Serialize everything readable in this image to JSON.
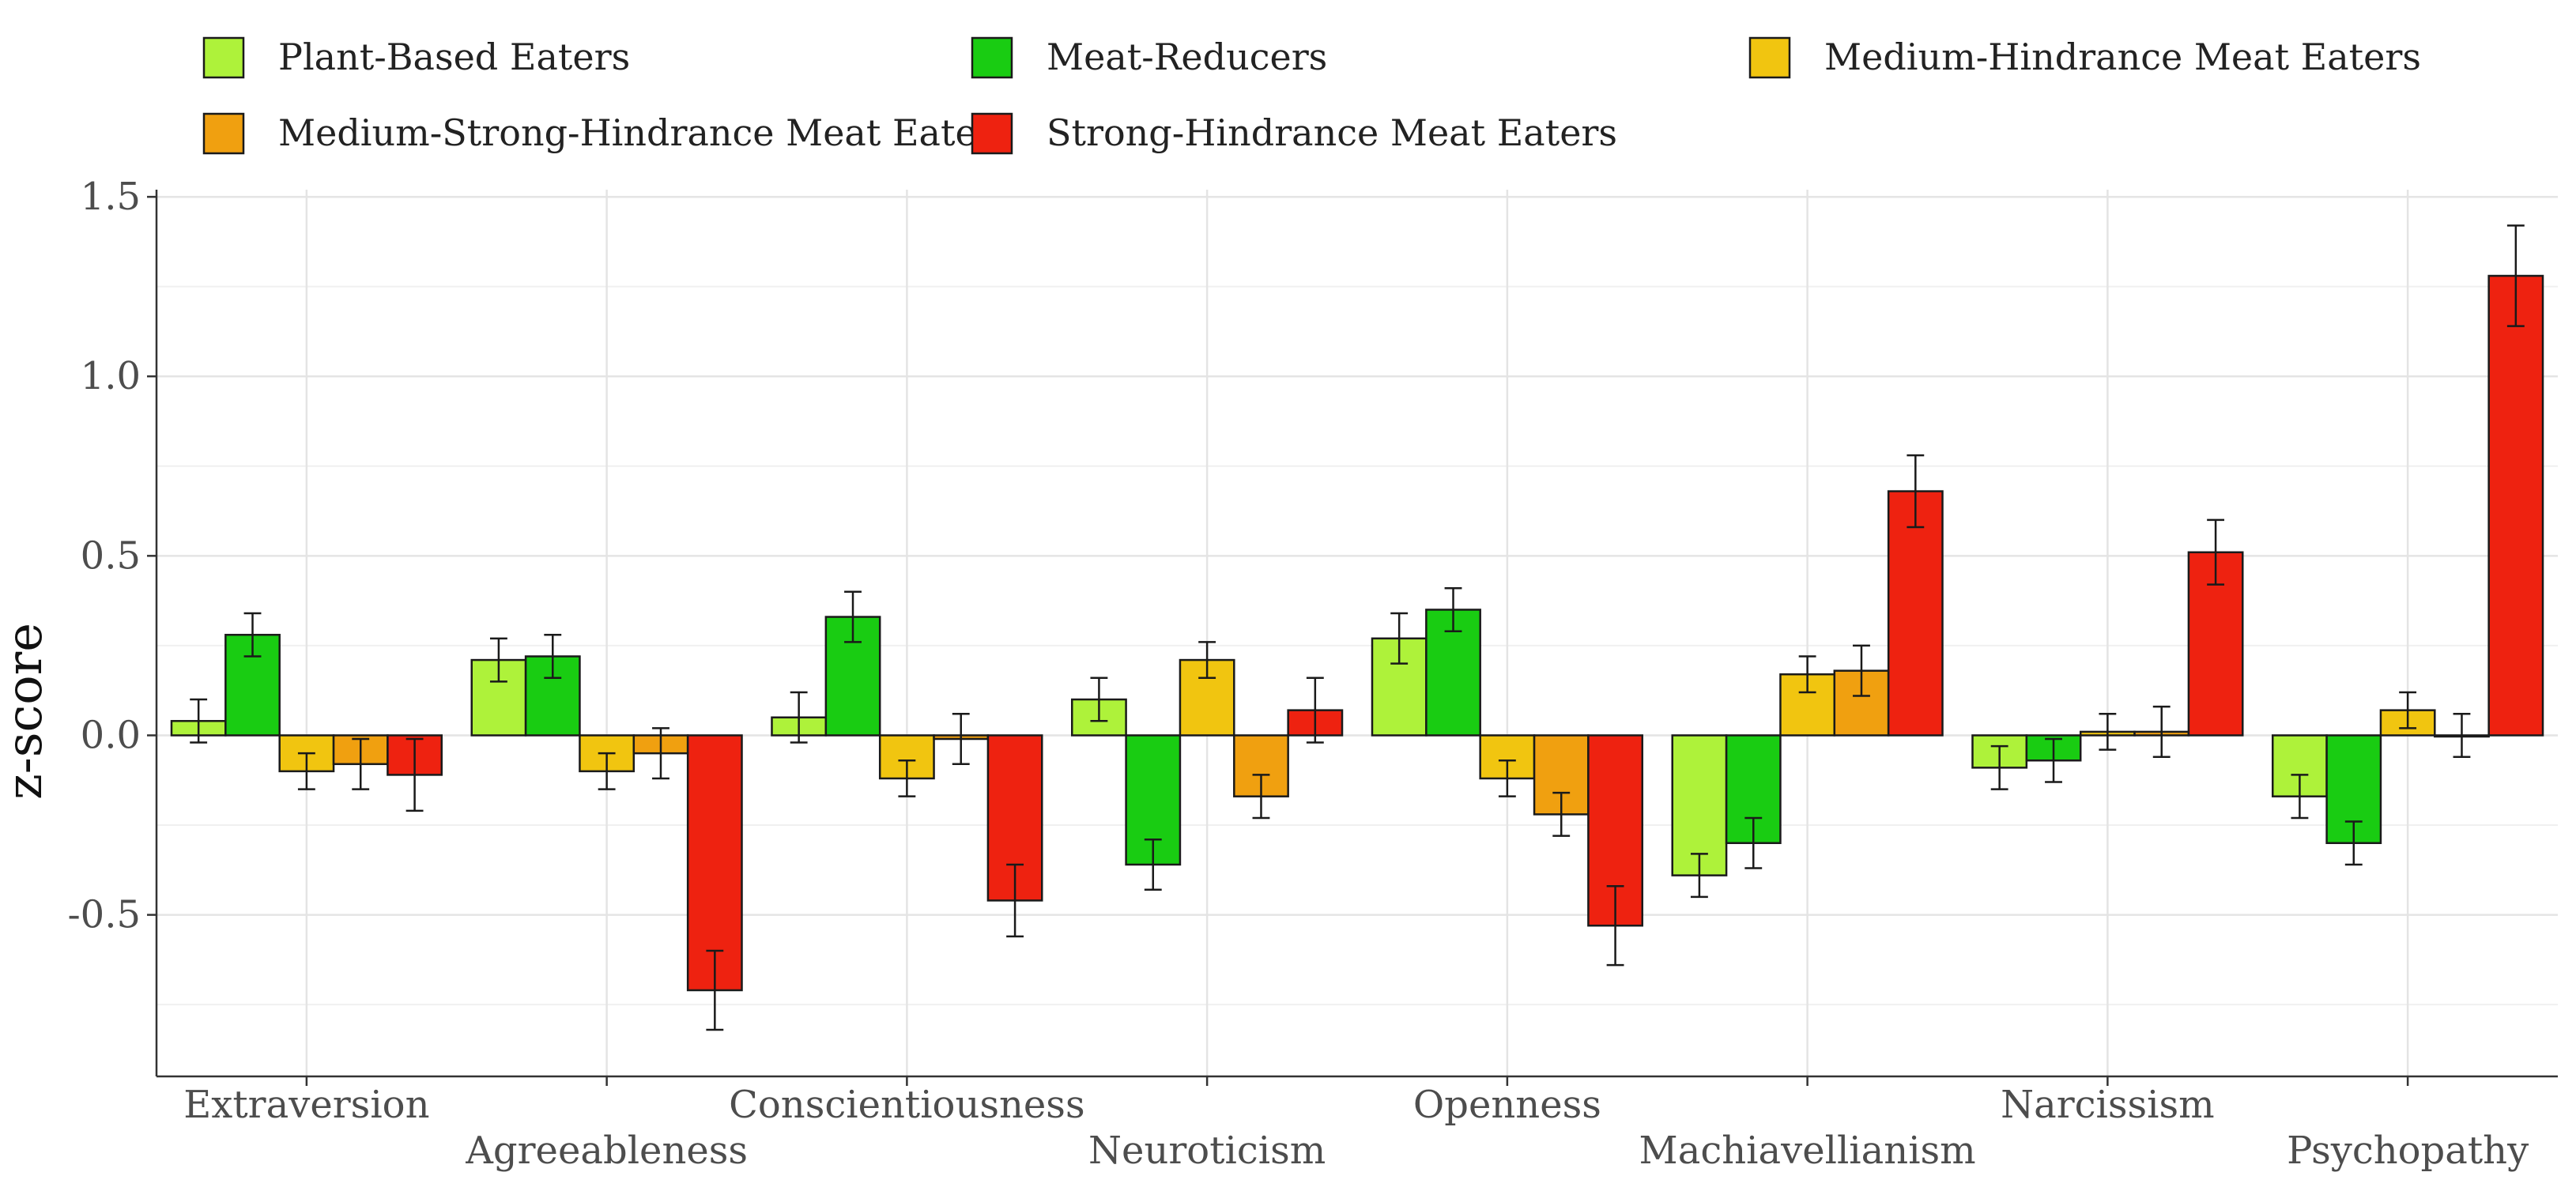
{
  "chart_data": {
    "type": "bar",
    "title": "",
    "xlabel": "",
    "ylabel": "z-score",
    "ylim": [
      -0.95,
      1.52
    ],
    "yticks": [
      -0.5,
      0.0,
      0.5,
      1.0,
      1.5
    ],
    "ytick_labels": [
      "-0.5",
      "0.0",
      "0.5",
      "1.0",
      "1.5"
    ],
    "grid": true,
    "legend_position": "top",
    "categories": [
      "Extraversion",
      "Agreeableness",
      "Conscientiousness",
      "Neuroticism",
      "Openness",
      "Machiavellianism",
      "Narcissism",
      "Psychopathy"
    ],
    "series": [
      {
        "name": "Plant-Based Eaters",
        "color": "#aef23a",
        "values": [
          0.04,
          0.21,
          0.05,
          0.1,
          0.27,
          -0.39,
          -0.09,
          -0.17
        ],
        "errors": [
          0.06,
          0.06,
          0.07,
          0.06,
          0.07,
          0.06,
          0.06,
          0.06
        ]
      },
      {
        "name": "Meat-Reducers",
        "color": "#19cc12",
        "values": [
          0.28,
          0.22,
          0.33,
          -0.36,
          0.35,
          -0.3,
          -0.07,
          -0.3
        ],
        "errors": [
          0.06,
          0.06,
          0.07,
          0.07,
          0.06,
          0.07,
          0.06,
          0.06
        ]
      },
      {
        "name": "Medium-Hindrance Meat Eaters",
        "color": "#f1c510",
        "values": [
          -0.1,
          -0.1,
          -0.12,
          0.21,
          -0.12,
          0.17,
          0.01,
          0.07
        ],
        "errors": [
          0.05,
          0.05,
          0.05,
          0.05,
          0.05,
          0.05,
          0.05,
          0.05
        ]
      },
      {
        "name": "Medium-Strong-Hindrance Meat Eaters",
        "color": "#f0a010",
        "values": [
          -0.08,
          -0.05,
          -0.01,
          -0.17,
          -0.22,
          0.18,
          0.01,
          0.0
        ],
        "errors": [
          0.07,
          0.07,
          0.07,
          0.06,
          0.06,
          0.07,
          0.07,
          0.06
        ]
      },
      {
        "name": "Strong-Hindrance Meat Eaters",
        "color": "#ee2210",
        "values": [
          -0.11,
          -0.71,
          -0.46,
          0.07,
          -0.53,
          0.68,
          0.51,
          1.28
        ],
        "errors": [
          0.1,
          0.11,
          0.1,
          0.09,
          0.11,
          0.1,
          0.09,
          0.14
        ]
      }
    ]
  }
}
